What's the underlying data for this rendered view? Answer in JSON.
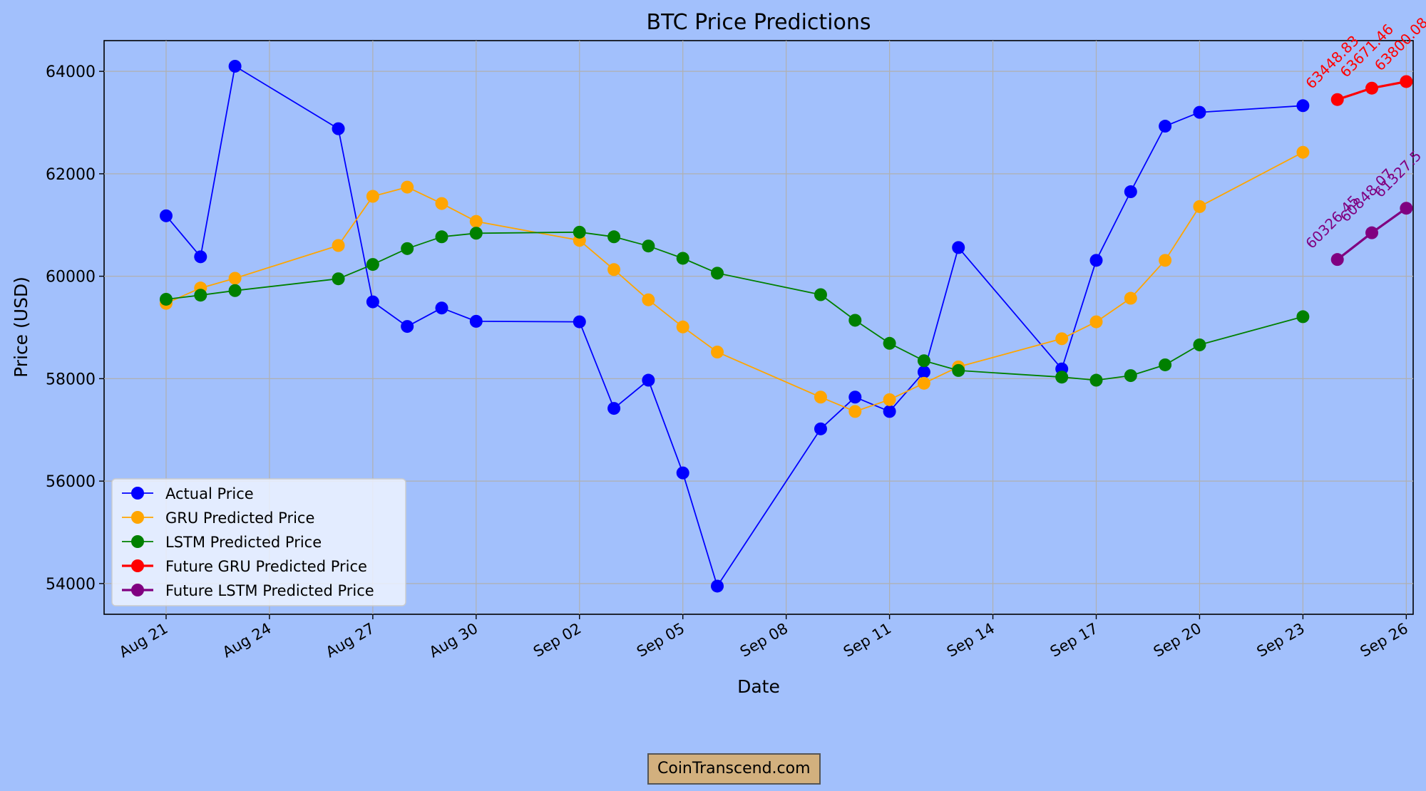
{
  "chart_data": {
    "type": "line",
    "title": "BTC Price Predictions",
    "xlabel": "Date",
    "ylabel": "Price (USD)",
    "ylim": [
      53400,
      64600
    ],
    "xlim_days": [
      -1.8,
      36.2
    ],
    "x_ticks": [
      {
        "day": 0,
        "label": "Aug 21"
      },
      {
        "day": 3,
        "label": "Aug 24"
      },
      {
        "day": 6,
        "label": "Aug 27"
      },
      {
        "day": 9,
        "label": "Aug 30"
      },
      {
        "day": 12,
        "label": "Sep 02"
      },
      {
        "day": 15,
        "label": "Sep 05"
      },
      {
        "day": 18,
        "label": "Sep 08"
      },
      {
        "day": 21,
        "label": "Sep 11"
      },
      {
        "day": 24,
        "label": "Sep 14"
      },
      {
        "day": 27,
        "label": "Sep 17"
      },
      {
        "day": 30,
        "label": "Sep 20"
      },
      {
        "day": 33,
        "label": "Sep 23"
      },
      {
        "day": 36,
        "label": "Sep 26"
      }
    ],
    "y_ticks": [
      54000,
      56000,
      58000,
      60000,
      62000,
      64000
    ],
    "grid": true,
    "legend_position": "bottom-left",
    "series": [
      {
        "name": "Actual Price",
        "color": "#0000ff",
        "x": [
          0,
          1,
          2,
          5,
          6,
          7,
          8,
          9,
          12,
          13,
          14,
          15,
          16,
          19,
          20,
          21,
          22,
          23,
          26,
          27,
          28,
          29,
          30,
          33
        ],
        "values": [
          61180,
          60380,
          64100,
          62880,
          59500,
          59020,
          59380,
          59120,
          59110,
          57420,
          57970,
          56160,
          53950,
          57020,
          57640,
          57360,
          58130,
          60560,
          58190,
          60310,
          61650,
          62930,
          63200,
          63330
        ]
      },
      {
        "name": "GRU Predicted Price",
        "color": "#ffa500",
        "x": [
          0,
          1,
          2,
          5,
          6,
          7,
          8,
          9,
          12,
          13,
          14,
          15,
          16,
          19,
          20,
          21,
          22,
          23,
          26,
          27,
          28,
          29,
          30,
          33
        ],
        "values": [
          59470,
          59770,
          59960,
          60600,
          61560,
          61740,
          61420,
          61070,
          60700,
          60130,
          59540,
          59010,
          58520,
          57640,
          57360,
          57590,
          57910,
          58230,
          58780,
          59110,
          59570,
          60310,
          61360,
          62420
        ]
      },
      {
        "name": "LSTM Predicted Price",
        "color": "#008000",
        "x": [
          0,
          1,
          2,
          5,
          6,
          7,
          8,
          9,
          12,
          13,
          14,
          15,
          16,
          19,
          20,
          21,
          22,
          23,
          26,
          27,
          28,
          29,
          30,
          33
        ],
        "values": [
          59550,
          59630,
          59720,
          59950,
          60230,
          60540,
          60770,
          60840,
          60860,
          60770,
          60590,
          60350,
          60060,
          59640,
          59140,
          58690,
          58350,
          58160,
          58030,
          57970,
          58060,
          58270,
          58660,
          59210
        ]
      },
      {
        "name": "Future GRU Predicted Price",
        "color": "#ff0000",
        "x": [
          34,
          35,
          36
        ],
        "values": [
          63448.83,
          63671.46,
          63800.08
        ],
        "labels": [
          "63448.83",
          "63671.46",
          "63800.08"
        ]
      },
      {
        "name": "Future LSTM Predicted Price",
        "color": "#800080",
        "x": [
          34,
          35,
          36
        ],
        "values": [
          60326.45,
          60848.07,
          61327.5
        ],
        "labels": [
          "60326.45",
          "60848.07",
          "61327.5"
        ]
      }
    ]
  },
  "watermark": "CoinTranscend.com"
}
